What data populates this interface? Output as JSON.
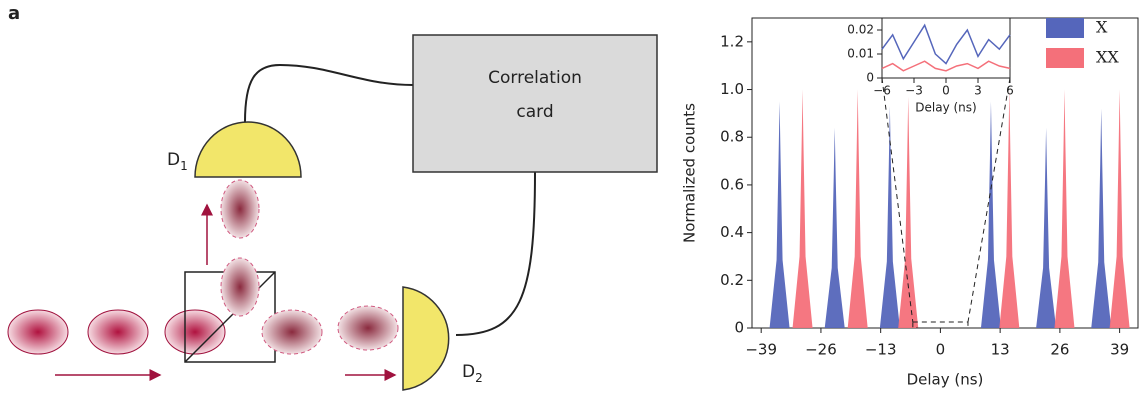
{
  "diagram": {
    "panel_label": "a",
    "correlation_card": {
      "lines": [
        "Correlation",
        "card"
      ]
    },
    "detectors": [
      {
        "label": "D",
        "subscript": "1"
      },
      {
        "label": "D",
        "subscript": "2"
      }
    ]
  },
  "chart_data": [
    {
      "type": "spike",
      "xlabel": "Delay (ns)",
      "ylabel": "Normalized counts",
      "xlim": [
        -41,
        43
      ],
      "ylim": [
        0,
        1.3
      ],
      "xticks": [
        {
          "value": -39,
          "label": "−39"
        },
        {
          "value": -26,
          "label": "−26"
        },
        {
          "value": -13,
          "label": "−13"
        },
        0,
        13,
        26,
        39
      ],
      "yticks": [
        0,
        0.2,
        0.4,
        0.6,
        0.8,
        {
          "value": 1,
          "label": "1.0"
        },
        1.2
      ],
      "legend": "top-right",
      "series": [
        {
          "name": "X",
          "color": "#5566bb",
          "x": [
            -35,
            -23,
            -11,
            11,
            23,
            35
          ],
          "values": [
            0.95,
            0.84,
            0.93,
            0.95,
            0.84,
            0.92
          ]
        },
        {
          "name": "XX",
          "color": "#f4707a",
          "x": [
            -30,
            -18,
            -7,
            15,
            27,
            39
          ],
          "values": [
            1.0,
            1.0,
            0.97,
            1.0,
            1.0,
            1.0
          ]
        }
      ]
    },
    {
      "type": "line",
      "xlabel": "Delay (ns)",
      "xlim": [
        -6,
        6
      ],
      "ylim": [
        0,
        0.025
      ],
      "xticks": [
        {
          "value": -6,
          "label": "−6"
        },
        {
          "value": -3,
          "label": "−3"
        },
        0,
        3,
        6
      ],
      "yticks": [
        0,
        0.01,
        0.02
      ],
      "series": [
        {
          "name": "X",
          "color": "#5566bb",
          "x": [
            -6,
            -5,
            -4,
            -3,
            -2,
            -1,
            0,
            1,
            2,
            3,
            4,
            5,
            6
          ],
          "values": [
            0.012,
            0.018,
            0.008,
            0.015,
            0.022,
            0.01,
            0.006,
            0.014,
            0.02,
            0.009,
            0.016,
            0.012,
            0.018
          ]
        },
        {
          "name": "XX",
          "color": "#f4707a",
          "x": [
            -6,
            -5,
            -4,
            -3,
            -2,
            -1,
            0,
            1,
            2,
            3,
            4,
            5,
            6
          ],
          "values": [
            0.004,
            0.006,
            0.003,
            0.005,
            0.007,
            0.004,
            0.003,
            0.005,
            0.006,
            0.004,
            0.007,
            0.005,
            0.004
          ]
        }
      ]
    }
  ]
}
